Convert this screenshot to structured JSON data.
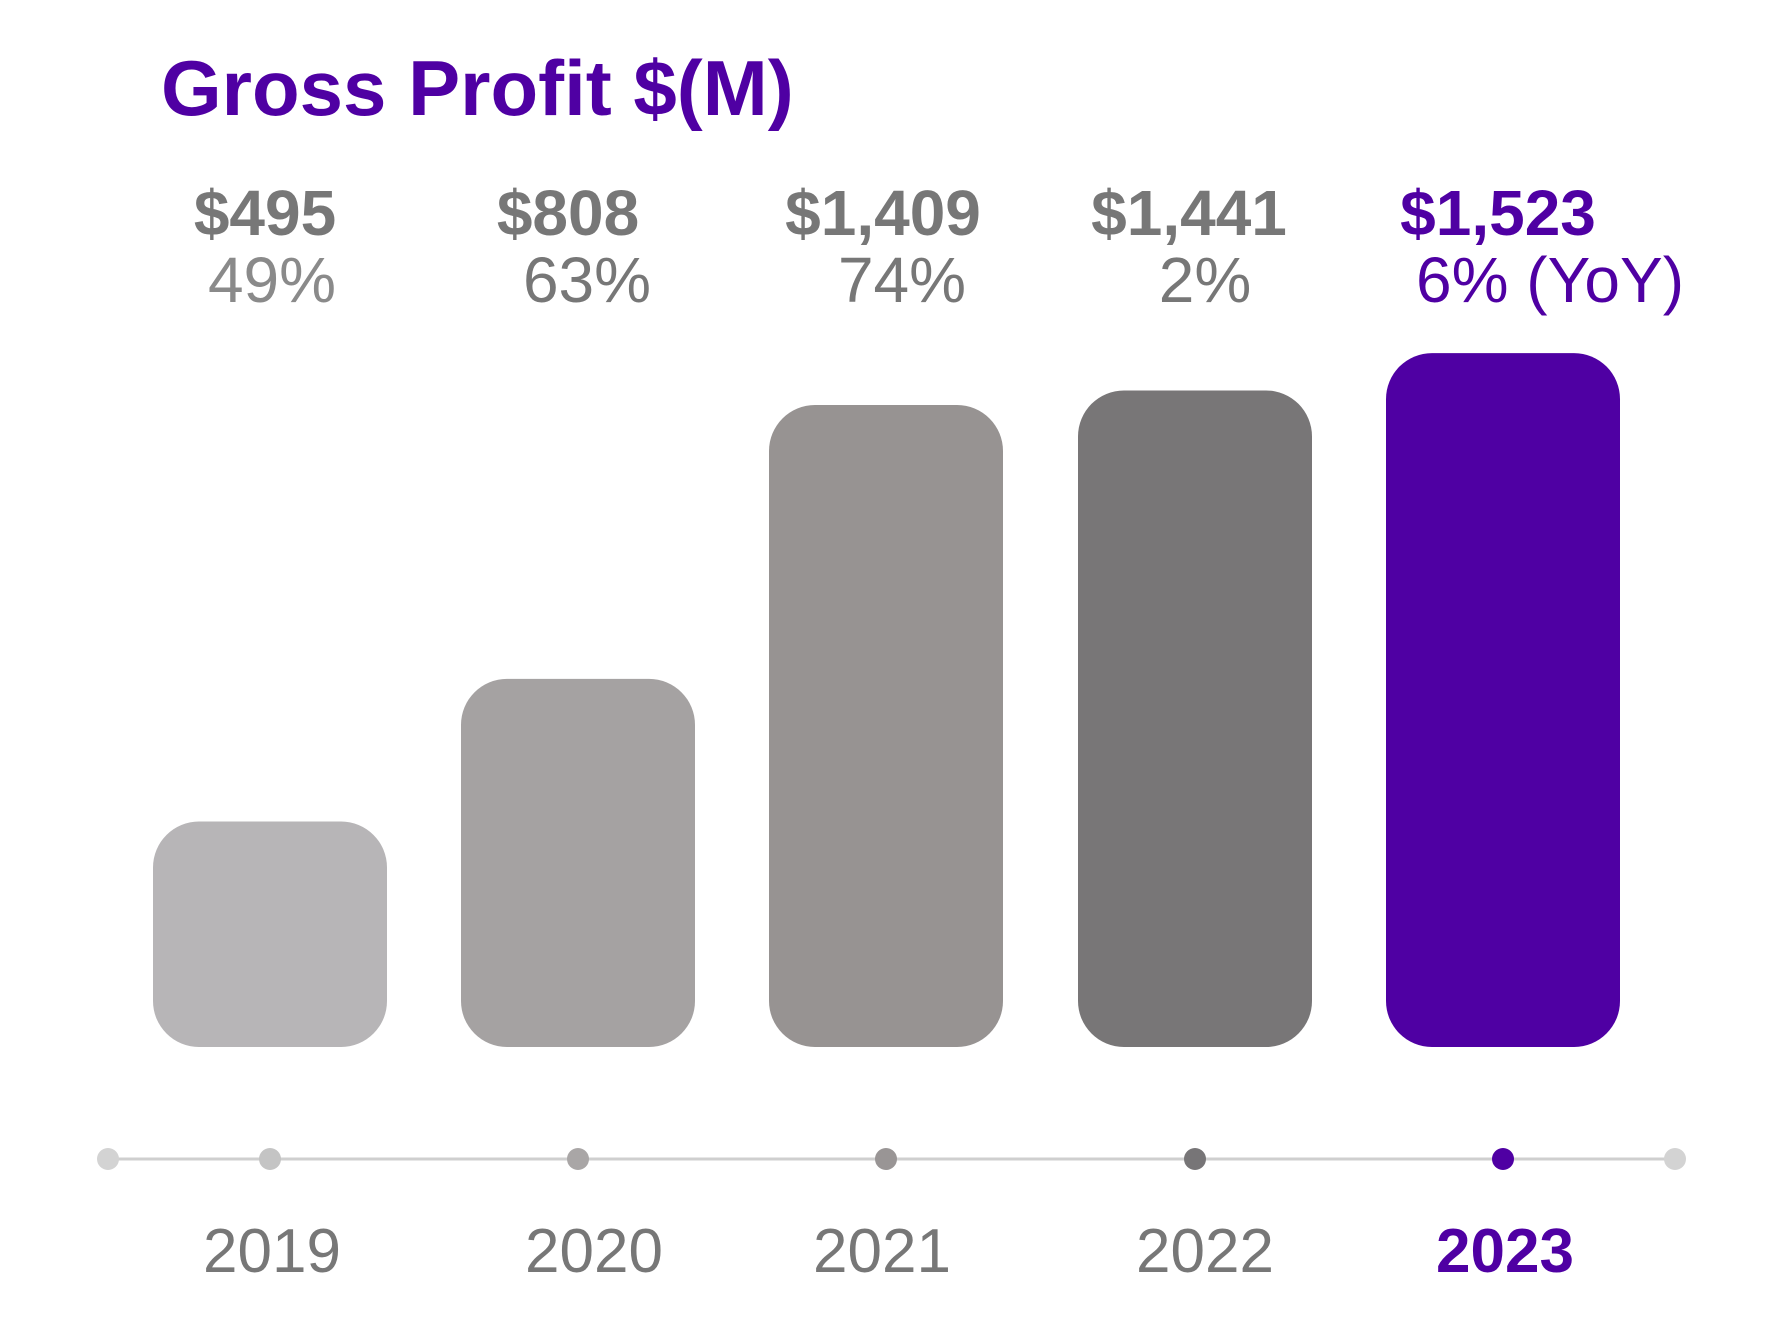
{
  "chart_data": {
    "type": "bar",
    "title": "Gross Profit $(M)",
    "xlabel": "",
    "ylabel": "",
    "ylim": [
      0,
      1600
    ],
    "grid": false,
    "legend": "none",
    "categories": [
      "2019",
      "2020",
      "2021",
      "2022",
      "2023"
    ],
    "values": [
      495,
      808,
      1409,
      1441,
      1523
    ],
    "value_labels": [
      "$495",
      "$808",
      "$1,409",
      "$1,441",
      "$1,523"
    ],
    "growth_labels": [
      "49%",
      "63%",
      "74%",
      "2%",
      "6% (YoY)"
    ],
    "highlight_index": 4,
    "colors": {
      "title": "#4f00a3",
      "bars": [
        "#b7b5b7",
        "#a5a2a2",
        "#979392",
        "#787677",
        "#4f00a3"
      ],
      "value_text": [
        "#777777",
        "#777777",
        "#777777",
        "#777777",
        "#4f00a3"
      ],
      "growth_text": [
        "#8a8a8a",
        "#777777",
        "#777777",
        "#777777",
        "#4f00a3"
      ],
      "year_text": [
        "#777777",
        "#777777",
        "#777777",
        "#777777",
        "#4f00a3"
      ],
      "timeline_line": "#cfcfcf",
      "timeline_end_dots": "#d3d3d3",
      "timeline_dots": [
        "#c4c4c4",
        "#a9a6a6",
        "#999595",
        "#777577",
        "#4f00a3"
      ]
    }
  }
}
